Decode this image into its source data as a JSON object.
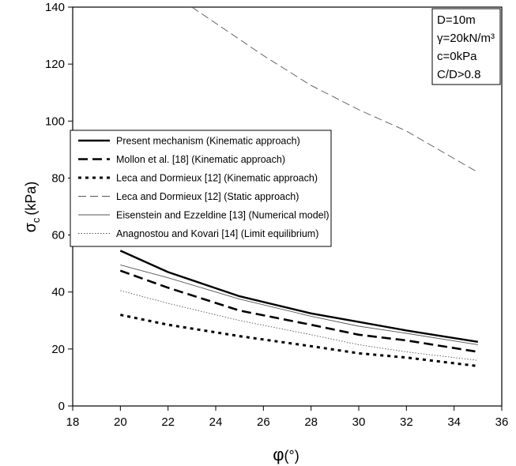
{
  "chart_data": {
    "type": "line",
    "xlabel_symbol": "φ",
    "xlabel_unit": "(°)",
    "ylabel_symbol": "σ",
    "ylabel_subscript": "c",
    "ylabel_unit": "(kPa)",
    "xlim": [
      18,
      36
    ],
    "ylim": [
      0,
      140
    ],
    "xticks": [
      "18",
      "20",
      "22",
      "24",
      "26",
      "28",
      "30",
      "32",
      "34",
      "36"
    ],
    "yticks": [
      "0",
      "20",
      "40",
      "60",
      "80",
      "100",
      "120",
      "140"
    ],
    "grid": false,
    "legend_position": "left-middle",
    "annotation": [
      "D=10m",
      "γ=20kN/m³",
      "c=0kPa",
      "C/D>0.8"
    ],
    "series": [
      {
        "name": "Present mechanism (Kinematic approach)",
        "style": "solid-thick",
        "color": "#000000",
        "x": [
          20,
          22,
          25,
          28,
          30,
          32,
          35
        ],
        "y": [
          54.5,
          47,
          38.5,
          32.5,
          29.5,
          26.5,
          22.5
        ]
      },
      {
        "name": "Mollon et al. [18] (Kinematic approach)",
        "style": "long-dash-thick",
        "color": "#000000",
        "x": [
          20,
          22,
          25,
          28,
          30,
          32,
          35
        ],
        "y": [
          47.5,
          41.5,
          33.5,
          28.5,
          25,
          23,
          19
        ]
      },
      {
        "name": "Leca and Dormieux [12] (Kinematic approach)",
        "style": "short-dash-thick",
        "color": "#000000",
        "x": [
          20,
          22,
          25,
          28,
          30,
          32,
          35
        ],
        "y": [
          32,
          28.5,
          24.5,
          21,
          18.5,
          17,
          14
        ]
      },
      {
        "name": "Leca and Dormieux [12] (Static approach)",
        "style": "dash-thin",
        "color": "#555555",
        "x": [
          23,
          26,
          28,
          30,
          32,
          35
        ],
        "y": [
          140,
          123,
          112.5,
          104,
          96.5,
          82
        ]
      },
      {
        "name": "Eisenstein and Ezzeldine [13] (Numerical model)",
        "style": "solid-thin",
        "color": "#555555",
        "x": [
          20,
          22,
          25,
          28,
          30,
          32,
          35
        ],
        "y": [
          49.5,
          45,
          37.5,
          31.5,
          28,
          25.5,
          21.5
        ]
      },
      {
        "name": "Anagnostou and Kovari [14] (Limit equilibrium)",
        "style": "dotted-thin",
        "color": "#555555",
        "x": [
          20,
          22,
          25,
          28,
          30,
          32,
          35
        ],
        "y": [
          40.5,
          36,
          30,
          25,
          21.5,
          19,
          16
        ]
      }
    ]
  }
}
